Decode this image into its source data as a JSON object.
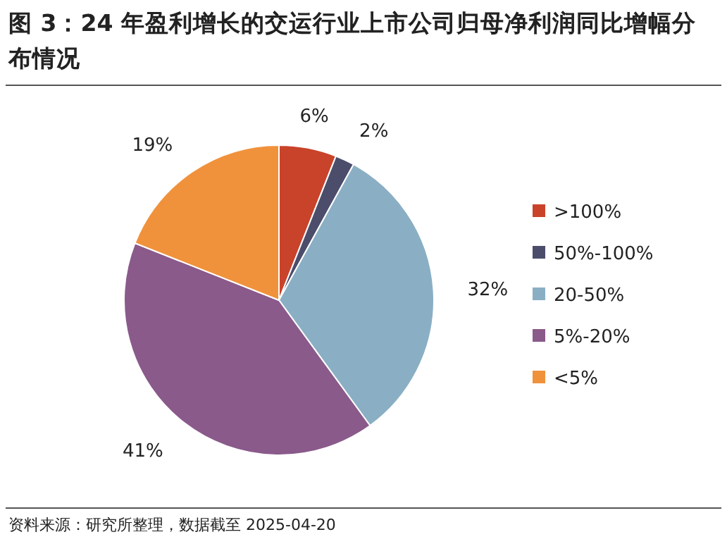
{
  "chart_data": {
    "type": "pie",
    "title": "图 3：24 年盈利增长的交运行业上市公司归母净利润同比增幅分布情况",
    "categories": [
      ">100%",
      "50%-100%",
      "20-50%",
      "5%-20%",
      "<5%"
    ],
    "values": [
      6,
      2,
      32,
      41,
      19
    ],
    "colors": [
      "#c9432b",
      "#4b4d6b",
      "#8aafc4",
      "#8a5a8b",
      "#f0923b"
    ],
    "value_labels": [
      "6%",
      "2%",
      "32%",
      "41%",
      "19%"
    ],
    "legend": "right",
    "annotations": [
      "资料来源：研究所整理，数据截至 2025-04-20"
    ]
  }
}
